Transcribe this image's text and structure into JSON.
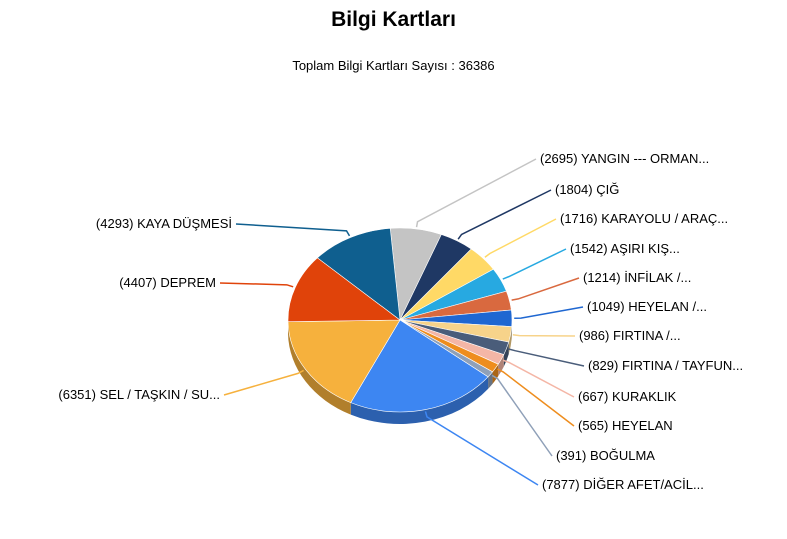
{
  "chart_data": {
    "type": "pie",
    "title": "Bilgi Kartları",
    "subtitle": "Toplam Bilgi Kartları Sayısı : 36386",
    "total": 36386,
    "slices": [
      {
        "label": "(2695) YANGIN --- ORMAN...",
        "value": 2695,
        "color": "#c4c4c4"
      },
      {
        "label": "(1804) ÇIĞ",
        "value": 1804,
        "color": "#1f3864"
      },
      {
        "label": "(1716) KARAYOLU / ARAÇ...",
        "value": 1716,
        "color": "#ffd966"
      },
      {
        "label": "(1542) AŞIRI KIŞ...",
        "value": 1542,
        "color": "#27a9e1"
      },
      {
        "label": "(1214) İNFİLAK /...",
        "value": 1214,
        "color": "#d9693f"
      },
      {
        "label": "(1049) HEYELAN /...",
        "value": 1049,
        "color": "#1f67d1"
      },
      {
        "label": "(986) FIRTINA /...",
        "value": 986,
        "color": "#f7d38a"
      },
      {
        "label": "(829) FIRTINA / TAYFUN...",
        "value": 829,
        "color": "#4a5d7a"
      },
      {
        "label": "(667) KURAKLIK",
        "value": 667,
        "color": "#f4b6a6"
      },
      {
        "label": "(565) HEYELAN",
        "value": 565,
        "color": "#ee8d1e"
      },
      {
        "label": "(391) BOĞULMA",
        "value": 391,
        "color": "#8fa0b8"
      },
      {
        "label": "(7877) DİĞER AFET/ACİL...",
        "value": 7877,
        "color": "#3d86f2"
      },
      {
        "label": "(6351) SEL / TAŞKIN / SU...",
        "value": 6351,
        "color": "#f6b13d"
      },
      {
        "label": "(4407) DEPREM",
        "value": 4407,
        "color": "#e0430a"
      },
      {
        "label": "(4293) KAYA DÜŞMESİ",
        "value": 4293,
        "color": "#0f5f8f"
      }
    ]
  }
}
